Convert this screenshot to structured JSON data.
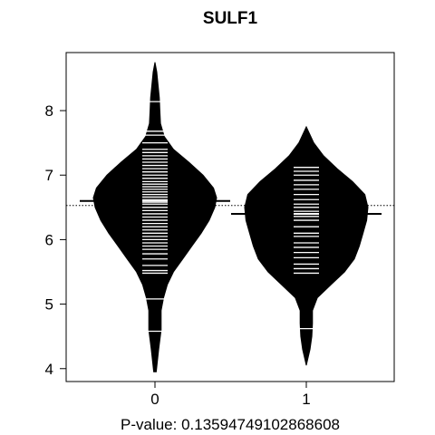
{
  "chart_data": {
    "type": "beanplot",
    "title": "SULF1",
    "xlabel": "P-value: 0.13594749102868608",
    "ylabel": "",
    "categories": [
      "0",
      "1"
    ],
    "ylim": [
      3.8,
      8.9
    ],
    "yticks": [
      4,
      5,
      6,
      7,
      8
    ],
    "overall_mean": 6.53,
    "colors": {
      "bean": "#000000",
      "stripe": "#ffffff",
      "frame": "#000000",
      "background": "#ffffff"
    },
    "series": [
      {
        "group": "0",
        "mean": 6.6,
        "y_range": [
          3.95,
          8.75
        ],
        "density": [
          [
            3.95,
            0.02
          ],
          [
            4.3,
            0.06
          ],
          [
            4.6,
            0.1
          ],
          [
            4.9,
            0.1
          ],
          [
            5.1,
            0.14
          ],
          [
            5.3,
            0.2
          ],
          [
            5.5,
            0.3
          ],
          [
            5.7,
            0.45
          ],
          [
            5.9,
            0.6
          ],
          [
            6.1,
            0.75
          ],
          [
            6.3,
            0.88
          ],
          [
            6.5,
            0.97
          ],
          [
            6.65,
            1.0
          ],
          [
            6.8,
            0.95
          ],
          [
            7.0,
            0.78
          ],
          [
            7.2,
            0.55
          ],
          [
            7.4,
            0.3
          ],
          [
            7.6,
            0.15
          ],
          [
            7.8,
            0.09
          ],
          [
            8.0,
            0.08
          ],
          [
            8.2,
            0.07
          ],
          [
            8.4,
            0.05
          ],
          [
            8.6,
            0.03
          ],
          [
            8.75,
            0.0
          ]
        ],
        "observations": [
          4.58,
          5.08,
          5.48,
          5.52,
          5.6,
          5.7,
          5.78,
          5.85,
          5.9,
          5.95,
          6.0,
          6.05,
          6.1,
          6.15,
          6.2,
          6.25,
          6.3,
          6.35,
          6.4,
          6.45,
          6.5,
          6.55,
          6.58,
          6.62,
          6.66,
          6.7,
          6.74,
          6.78,
          6.82,
          6.86,
          6.9,
          6.95,
          7.0,
          7.05,
          7.1,
          7.15,
          7.2,
          7.25,
          7.3,
          7.35,
          7.4,
          7.5,
          7.62,
          7.68,
          8.14
        ]
      },
      {
        "group": "1",
        "mean": 6.4,
        "y_range": [
          4.05,
          7.75
        ],
        "density": [
          [
            4.05,
            0.0
          ],
          [
            4.3,
            0.06
          ],
          [
            4.5,
            0.09
          ],
          [
            4.7,
            0.1
          ],
          [
            4.9,
            0.1
          ],
          [
            5.1,
            0.18
          ],
          [
            5.3,
            0.4
          ],
          [
            5.5,
            0.62
          ],
          [
            5.7,
            0.78
          ],
          [
            5.9,
            0.86
          ],
          [
            6.1,
            0.92
          ],
          [
            6.3,
            0.98
          ],
          [
            6.5,
            1.0
          ],
          [
            6.7,
            0.95
          ],
          [
            6.9,
            0.75
          ],
          [
            7.1,
            0.5
          ],
          [
            7.3,
            0.28
          ],
          [
            7.5,
            0.12
          ],
          [
            7.75,
            0.0
          ]
        ],
        "observations": [
          4.62,
          5.48,
          5.55,
          5.62,
          5.72,
          5.8,
          5.88,
          5.95,
          6.05,
          6.1,
          6.2,
          6.3,
          6.36,
          6.44,
          6.5,
          6.55,
          6.62,
          6.7,
          6.78,
          6.85,
          6.92,
          7.0,
          7.06,
          7.12
        ]
      }
    ]
  }
}
